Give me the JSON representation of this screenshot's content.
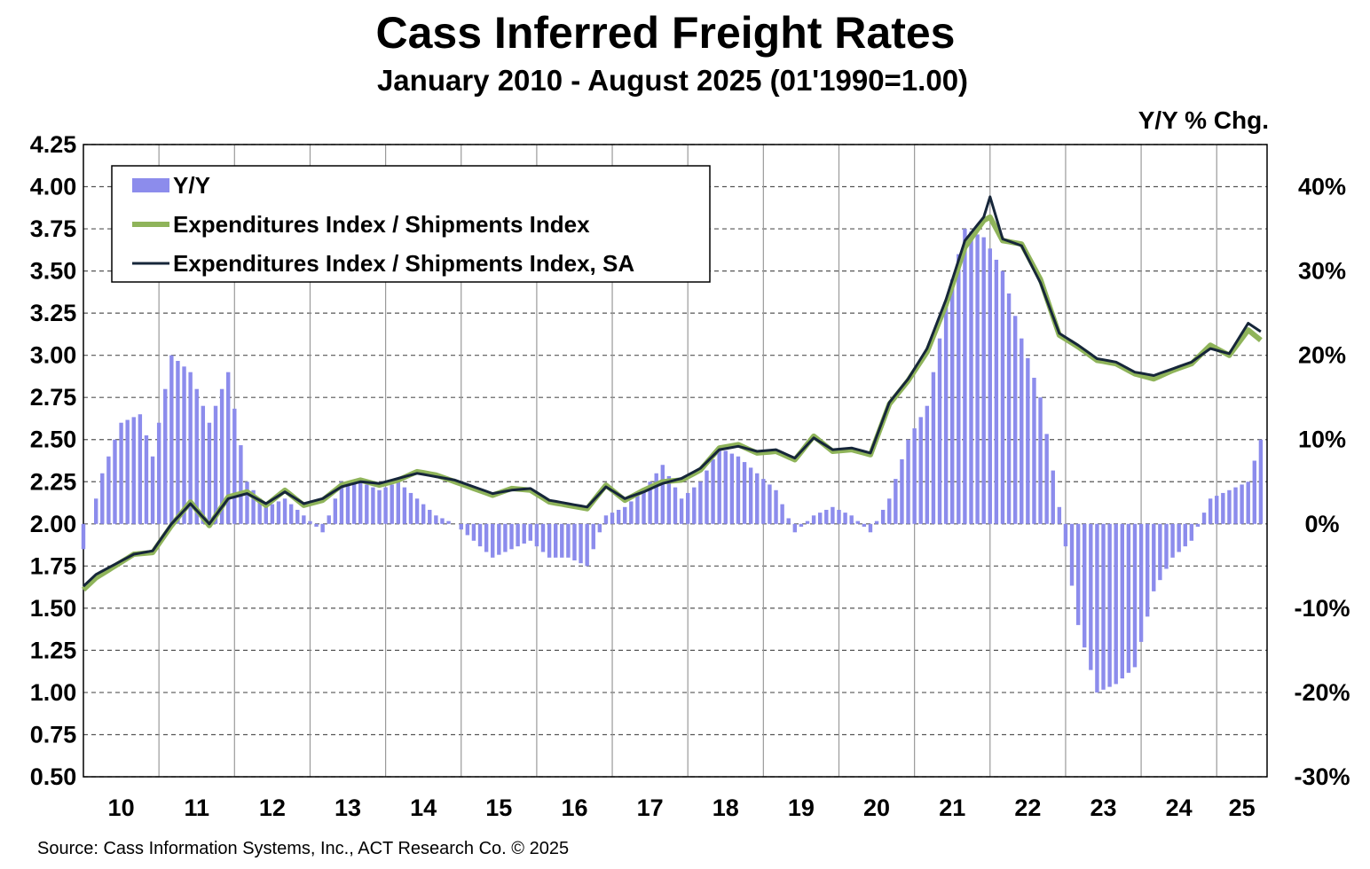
{
  "header": {
    "title": "Cass Inferred Freight Rates",
    "subtitle": "January 2010 - August 2025 (01'1990=1.00)",
    "right_axis_caption": "Y/Y % Chg."
  },
  "footer": {
    "source": "Source: Cass Information Systems, Inc., ACT Research Co. © 2025"
  },
  "colors": {
    "yy_bar": "#8c8cec",
    "nsa_line": "#8fb45a",
    "sa_line": "#16263a",
    "grid": "#555555"
  },
  "chart_data": {
    "type": "line",
    "title": "Cass Inferred Freight Rates",
    "subtitle": "January 2010 - August 2025 (01'1990=1.00)",
    "x_tick_labels": [
      "10",
      "11",
      "12",
      "13",
      "14",
      "15",
      "16",
      "17",
      "18",
      "19",
      "20",
      "21",
      "22",
      "23",
      "24",
      "25"
    ],
    "x_range": [
      "2010-01",
      "2025-08"
    ],
    "y_left": {
      "min": 0.5,
      "max": 4.25,
      "ticks": [
        "0.50",
        "0.75",
        "1.00",
        "1.25",
        "1.50",
        "1.75",
        "2.00",
        "2.25",
        "2.50",
        "2.75",
        "3.00",
        "3.25",
        "3.50",
        "3.75",
        "4.00",
        "4.25"
      ]
    },
    "y_right": {
      "label": "Y/Y % Chg.",
      "min": -30,
      "max": 45,
      "ticks": [
        "-30%",
        "-20%",
        "-10%",
        "0%",
        "10%",
        "20%",
        "30%",
        "40%"
      ]
    },
    "grid": true,
    "legend_position": "top-left",
    "legend": [
      "Y/Y",
      "Expenditures Index / Shipments Index",
      "Expenditures Index / Shipments Index, SA"
    ],
    "series": [
      {
        "name": "Expenditures Index / Shipments Index, SA",
        "axis": "left",
        "points": [
          [
            "2010-01",
            1.63
          ],
          [
            "2010-03",
            1.7
          ],
          [
            "2010-06",
            1.76
          ],
          [
            "2010-09",
            1.82
          ],
          [
            "2010-12",
            1.84
          ],
          [
            "2011-03",
            2.0
          ],
          [
            "2011-06",
            2.12
          ],
          [
            "2011-09",
            2.0
          ],
          [
            "2011-12",
            2.15
          ],
          [
            "2012-03",
            2.18
          ],
          [
            "2012-06",
            2.12
          ],
          [
            "2012-09",
            2.19
          ],
          [
            "2012-12",
            2.12
          ],
          [
            "2013-03",
            2.15
          ],
          [
            "2013-06",
            2.22
          ],
          [
            "2013-09",
            2.25
          ],
          [
            "2013-12",
            2.24
          ],
          [
            "2014-03",
            2.27
          ],
          [
            "2014-06",
            2.3
          ],
          [
            "2014-09",
            2.28
          ],
          [
            "2014-12",
            2.26
          ],
          [
            "2015-03",
            2.22
          ],
          [
            "2015-06",
            2.18
          ],
          [
            "2015-09",
            2.2
          ],
          [
            "2015-12",
            2.21
          ],
          [
            "2016-03",
            2.14
          ],
          [
            "2016-06",
            2.12
          ],
          [
            "2016-09",
            2.1
          ],
          [
            "2016-12",
            2.22
          ],
          [
            "2017-03",
            2.15
          ],
          [
            "2017-06",
            2.19
          ],
          [
            "2017-09",
            2.24
          ],
          [
            "2017-12",
            2.27
          ],
          [
            "2018-03",
            2.33
          ],
          [
            "2018-06",
            2.44
          ],
          [
            "2018-09",
            2.46
          ],
          [
            "2018-12",
            2.43
          ],
          [
            "2019-03",
            2.44
          ],
          [
            "2019-06",
            2.39
          ],
          [
            "2019-09",
            2.51
          ],
          [
            "2019-12",
            2.44
          ],
          [
            "2020-03",
            2.45
          ],
          [
            "2020-06",
            2.42
          ],
          [
            "2020-09",
            2.72
          ],
          [
            "2020-12",
            2.86
          ],
          [
            "2021-03",
            3.04
          ],
          [
            "2021-06",
            3.33
          ],
          [
            "2021-09",
            3.68
          ],
          [
            "2021-12",
            3.82
          ],
          [
            "2022-01",
            3.94
          ],
          [
            "2022-03",
            3.69
          ],
          [
            "2022-06",
            3.65
          ],
          [
            "2022-09",
            3.43
          ],
          [
            "2022-12",
            3.13
          ],
          [
            "2023-03",
            3.06
          ],
          [
            "2023-06",
            2.98
          ],
          [
            "2023-09",
            2.96
          ],
          [
            "2023-12",
            2.9
          ],
          [
            "2024-03",
            2.88
          ],
          [
            "2024-06",
            2.92
          ],
          [
            "2024-09",
            2.96
          ],
          [
            "2024-12",
            3.04
          ],
          [
            "2025-03",
            3.01
          ],
          [
            "2025-06",
            3.19
          ],
          [
            "2025-08",
            3.14
          ]
        ]
      },
      {
        "name": "Expenditures Index / Shipments Index",
        "axis": "left",
        "points": [
          [
            "2010-01",
            1.61
          ],
          [
            "2010-03",
            1.68
          ],
          [
            "2010-06",
            1.75
          ],
          [
            "2010-09",
            1.82
          ],
          [
            "2010-12",
            1.83
          ],
          [
            "2011-03",
            1.99
          ],
          [
            "2011-06",
            2.13
          ],
          [
            "2011-09",
            1.99
          ],
          [
            "2011-12",
            2.16
          ],
          [
            "2012-03",
            2.19
          ],
          [
            "2012-06",
            2.11
          ],
          [
            "2012-09",
            2.2
          ],
          [
            "2012-12",
            2.11
          ],
          [
            "2013-03",
            2.14
          ],
          [
            "2013-06",
            2.23
          ],
          [
            "2013-09",
            2.26
          ],
          [
            "2013-12",
            2.23
          ],
          [
            "2014-03",
            2.26
          ],
          [
            "2014-06",
            2.31
          ],
          [
            "2014-09",
            2.29
          ],
          [
            "2014-12",
            2.25
          ],
          [
            "2015-03",
            2.21
          ],
          [
            "2015-06",
            2.17
          ],
          [
            "2015-09",
            2.21
          ],
          [
            "2015-12",
            2.2
          ],
          [
            "2016-03",
            2.13
          ],
          [
            "2016-06",
            2.11
          ],
          [
            "2016-09",
            2.09
          ],
          [
            "2016-12",
            2.23
          ],
          [
            "2017-03",
            2.14
          ],
          [
            "2017-06",
            2.2
          ],
          [
            "2017-09",
            2.25
          ],
          [
            "2017-12",
            2.26
          ],
          [
            "2018-03",
            2.32
          ],
          [
            "2018-06",
            2.45
          ],
          [
            "2018-09",
            2.47
          ],
          [
            "2018-12",
            2.42
          ],
          [
            "2019-03",
            2.43
          ],
          [
            "2019-06",
            2.38
          ],
          [
            "2019-09",
            2.52
          ],
          [
            "2019-12",
            2.43
          ],
          [
            "2020-03",
            2.44
          ],
          [
            "2020-06",
            2.41
          ],
          [
            "2020-09",
            2.71
          ],
          [
            "2020-12",
            2.85
          ],
          [
            "2021-03",
            3.02
          ],
          [
            "2021-06",
            3.3
          ],
          [
            "2021-09",
            3.64
          ],
          [
            "2021-12",
            3.8
          ],
          [
            "2022-01",
            3.82
          ],
          [
            "2022-03",
            3.68
          ],
          [
            "2022-06",
            3.66
          ],
          [
            "2022-09",
            3.45
          ],
          [
            "2022-12",
            3.12
          ],
          [
            "2023-03",
            3.05
          ],
          [
            "2023-06",
            2.97
          ],
          [
            "2023-09",
            2.95
          ],
          [
            "2023-12",
            2.89
          ],
          [
            "2024-03",
            2.86
          ],
          [
            "2024-06",
            2.91
          ],
          [
            "2024-09",
            2.95
          ],
          [
            "2024-12",
            3.06
          ],
          [
            "2025-03",
            3.0
          ],
          [
            "2025-06",
            3.15
          ],
          [
            "2025-08",
            3.09
          ]
        ]
      },
      {
        "name": "Y/Y",
        "axis": "right",
        "type": "bar",
        "points": [
          [
            "2010-01",
            -3
          ],
          [
            "2010-04",
            6
          ],
          [
            "2010-07",
            12
          ],
          [
            "2010-10",
            13
          ],
          [
            "2010-12",
            8
          ],
          [
            "2011-03",
            20
          ],
          [
            "2011-06",
            18
          ],
          [
            "2011-09",
            12
          ],
          [
            "2011-12",
            18
          ],
          [
            "2012-03",
            5
          ],
          [
            "2012-06",
            2
          ],
          [
            "2012-09",
            3
          ],
          [
            "2012-12",
            1
          ],
          [
            "2013-03",
            -1
          ],
          [
            "2013-06",
            5
          ],
          [
            "2013-09",
            5
          ],
          [
            "2013-12",
            4
          ],
          [
            "2014-03",
            5
          ],
          [
            "2014-06",
            3
          ],
          [
            "2014-09",
            1
          ],
          [
            "2014-12",
            0
          ],
          [
            "2015-03",
            -2
          ],
          [
            "2015-06",
            -4
          ],
          [
            "2015-09",
            -3
          ],
          [
            "2015-12",
            -2
          ],
          [
            "2016-03",
            -4
          ],
          [
            "2016-06",
            -4
          ],
          [
            "2016-09",
            -5
          ],
          [
            "2016-12",
            1
          ],
          [
            "2017-03",
            2
          ],
          [
            "2017-06",
            4
          ],
          [
            "2017-09",
            7
          ],
          [
            "2017-12",
            3
          ],
          [
            "2018-03",
            5
          ],
          [
            "2018-06",
            9
          ],
          [
            "2018-09",
            8
          ],
          [
            "2018-12",
            6
          ],
          [
            "2019-03",
            4
          ],
          [
            "2019-06",
            -1
          ],
          [
            "2019-09",
            1
          ],
          [
            "2019-12",
            2
          ],
          [
            "2020-03",
            1
          ],
          [
            "2020-06",
            -1
          ],
          [
            "2020-09",
            3
          ],
          [
            "2020-12",
            10
          ],
          [
            "2021-03",
            14
          ],
          [
            "2021-06",
            26
          ],
          [
            "2021-09",
            35
          ],
          [
            "2021-12",
            34
          ],
          [
            "2022-03",
            30
          ],
          [
            "2022-06",
            22
          ],
          [
            "2022-09",
            15
          ],
          [
            "2022-12",
            2
          ],
          [
            "2023-03",
            -12
          ],
          [
            "2023-06",
            -20
          ],
          [
            "2023-09",
            -19
          ],
          [
            "2023-12",
            -17
          ],
          [
            "2024-03",
            -8
          ],
          [
            "2024-06",
            -4
          ],
          [
            "2024-09",
            -2
          ],
          [
            "2024-12",
            3
          ],
          [
            "2025-03",
            4
          ],
          [
            "2025-06",
            5
          ],
          [
            "2025-08",
            10
          ]
        ]
      }
    ]
  }
}
